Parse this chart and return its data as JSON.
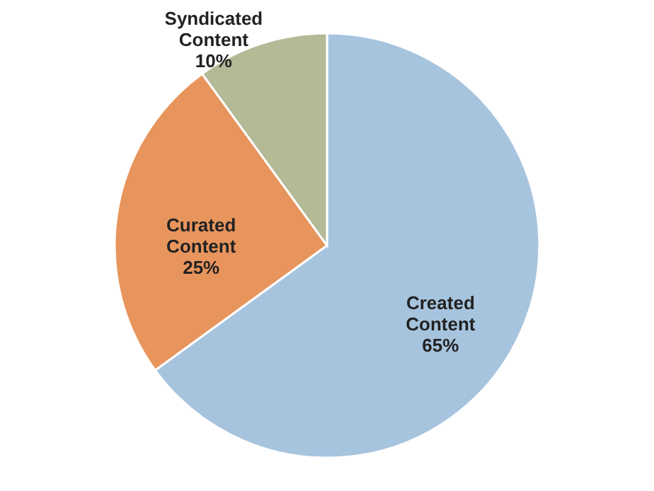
{
  "chart_data": {
    "type": "pie",
    "categories": [
      "Created Content",
      "Curated Content",
      "Syndicated Content"
    ],
    "values": [
      65,
      25,
      10
    ],
    "colors": [
      "#a7c4de",
      "#e8955d",
      "#b4b996"
    ],
    "value_labels": [
      "65%",
      "25%",
      "10%"
    ]
  }
}
